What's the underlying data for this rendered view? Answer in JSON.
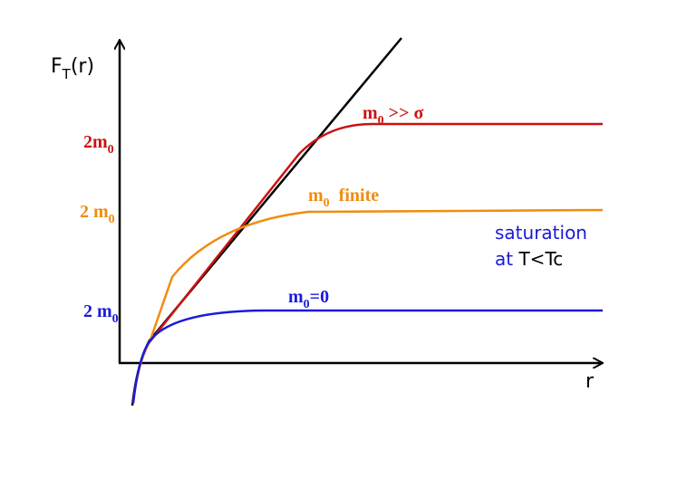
{
  "axes": {
    "y_label": {
      "base": "F",
      "sub": "T",
      "tail": "(r)"
    },
    "x_label": "r"
  },
  "levels": [
    {
      "base": "2m",
      "sub": "0"
    },
    {
      "base": "2 m",
      "sub": "0"
    },
    {
      "base": "2 m",
      "sub": "0"
    }
  ],
  "curves": [
    {
      "base": "m",
      "sub": "0",
      "tail": " >> σ"
    },
    {
      "base": "m",
      "sub": "0",
      "tail": "  finite"
    },
    {
      "base": "m",
      "sub": "0",
      "tail": "=0"
    }
  ],
  "note": {
    "line1": "saturation",
    "line2_start": "at ",
    "line2_end": "T<Tc"
  }
}
